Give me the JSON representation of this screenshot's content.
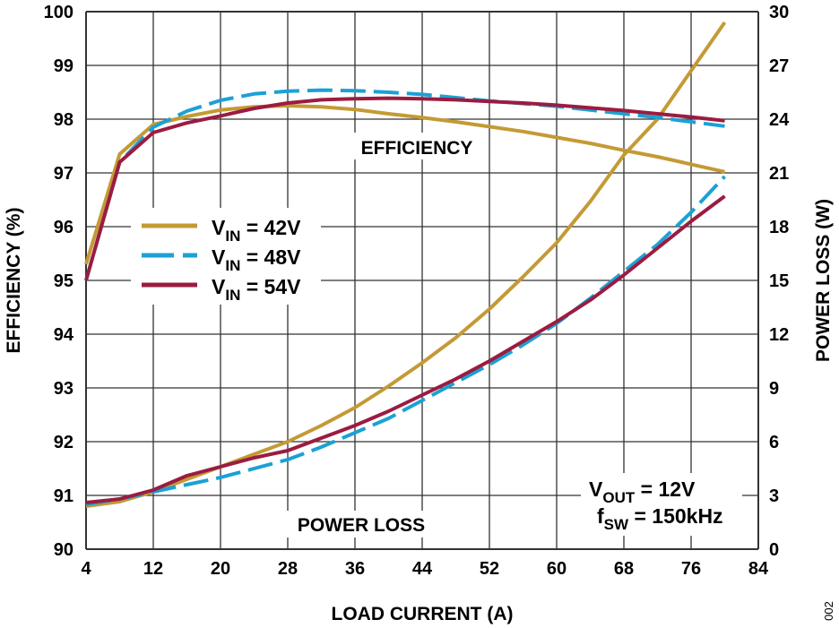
{
  "chart_data": {
    "type": "line",
    "xlabel": "LOAD CURRENT (A)",
    "ylabel": "EFFICIENCY (%)",
    "y2label": "POWER LOSS (W)",
    "xlim": [
      4,
      84
    ],
    "ylim": [
      90,
      100
    ],
    "y2lim": [
      0,
      30
    ],
    "xticks": [
      "4",
      "12",
      "20",
      "28",
      "36",
      "44",
      "52",
      "60",
      "68",
      "76",
      "84"
    ],
    "yticks": [
      "90",
      "91",
      "92",
      "93",
      "94",
      "95",
      "96",
      "97",
      "98",
      "99",
      "100"
    ],
    "y2ticks": [
      "0",
      "3",
      "6",
      "9",
      "12",
      "15",
      "18",
      "21",
      "24",
      "27",
      "30"
    ],
    "grid": true,
    "legend_position": "center-left",
    "x": [
      4,
      8,
      12,
      16,
      20,
      24,
      28,
      32,
      36,
      40,
      44,
      48,
      52,
      56,
      60,
      64,
      68,
      72,
      76,
      80
    ],
    "series": [
      {
        "name": "V_IN = 42V",
        "legend": {
          "main": "V",
          "sub": "IN",
          "rest": " = 42V"
        },
        "color": "#C49A35",
        "dashed": false,
        "efficiency": [
          95.3,
          97.35,
          97.9,
          98.05,
          98.17,
          98.23,
          98.25,
          98.23,
          98.18,
          98.1,
          98.03,
          97.95,
          97.86,
          97.77,
          97.66,
          97.55,
          97.42,
          97.3,
          97.16,
          97.02
        ],
        "power_loss": [
          2.4,
          2.65,
          3.2,
          3.9,
          4.6,
          5.3,
          6.0,
          6.9,
          7.9,
          9.1,
          10.4,
          11.8,
          13.4,
          15.2,
          17.1,
          19.4,
          22.0,
          24.0,
          26.7,
          29.4
        ]
      },
      {
        "name": "V_IN = 48V",
        "legend": {
          "main": "V",
          "sub": "IN",
          "rest": " = 48V"
        },
        "color": "#1BA1D6",
        "dashed": true,
        "efficiency": [
          95.0,
          97.2,
          97.85,
          98.15,
          98.35,
          98.47,
          98.52,
          98.54,
          98.53,
          98.5,
          98.46,
          98.4,
          98.34,
          98.29,
          98.24,
          98.17,
          98.1,
          98.03,
          97.95,
          97.87
        ],
        "power_loss": [
          2.5,
          2.8,
          3.2,
          3.6,
          4.0,
          4.5,
          5.0,
          5.7,
          6.5,
          7.3,
          8.3,
          9.3,
          10.3,
          11.4,
          12.6,
          14.0,
          15.5,
          17.0,
          18.8,
          20.8
        ]
      },
      {
        "name": "V_IN = 54V",
        "legend": {
          "main": "V",
          "sub": "IN",
          "rest": " = 54V"
        },
        "color": "#9B1C40",
        "dashed": false,
        "efficiency": [
          95.0,
          97.2,
          97.75,
          97.93,
          98.06,
          98.2,
          98.3,
          98.36,
          98.38,
          98.39,
          98.38,
          98.36,
          98.33,
          98.3,
          98.26,
          98.21,
          98.16,
          98.1,
          98.04,
          97.97
        ],
        "power_loss": [
          2.6,
          2.8,
          3.3,
          4.1,
          4.6,
          5.1,
          5.5,
          6.2,
          6.9,
          7.7,
          8.6,
          9.5,
          10.5,
          11.6,
          12.7,
          13.9,
          15.3,
          16.8,
          18.3,
          19.7
        ]
      }
    ],
    "annotations": {
      "efficiency": "EFFICIENCY",
      "power_loss": "POWER LOSS",
      "vout": {
        "main": "V",
        "sub": "OUT",
        "rest": " = 12V"
      },
      "fsw": {
        "main": "f",
        "sub": "SW",
        "rest": " = 150kHz"
      }
    },
    "figure_id": "002"
  }
}
